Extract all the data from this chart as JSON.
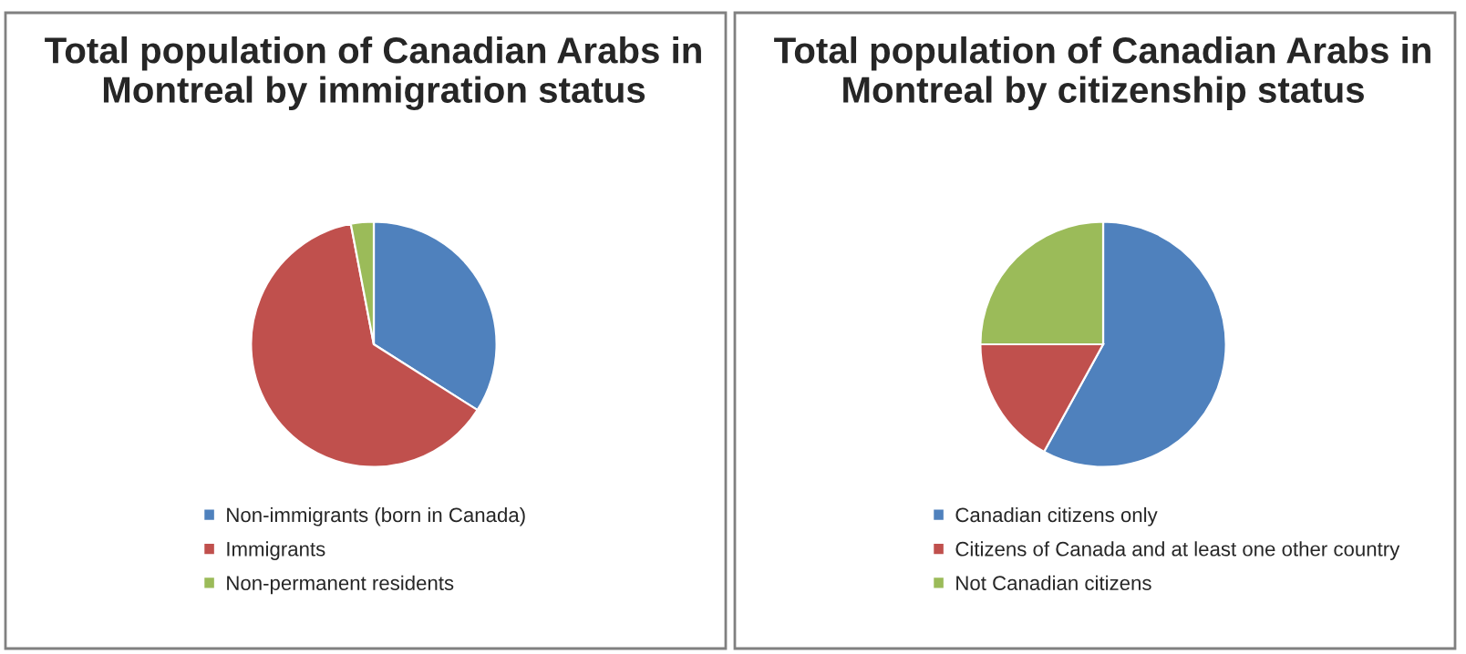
{
  "chart_data": [
    {
      "type": "pie",
      "title": "Total population of Canadian Arabs in Montreal by immigration status",
      "categories": [
        "Non-immigrants (born in Canada)",
        "Immigrants",
        "Non-permanent residents"
      ],
      "values": [
        34,
        63,
        3
      ],
      "colors": [
        "#4f81bd",
        "#c0504d",
        "#9bbb59"
      ],
      "legend": "bottom"
    },
    {
      "type": "pie",
      "title": "Total population of Canadian Arabs in Montreal by citizenship status",
      "categories": [
        "Canadian citizens only",
        "Citizens of Canada and at least one other country",
        "Not Canadian citizens"
      ],
      "values": [
        58,
        17,
        25
      ],
      "colors": [
        "#4f81bd",
        "#c0504d",
        "#9bbb59"
      ],
      "legend": "bottom"
    }
  ]
}
